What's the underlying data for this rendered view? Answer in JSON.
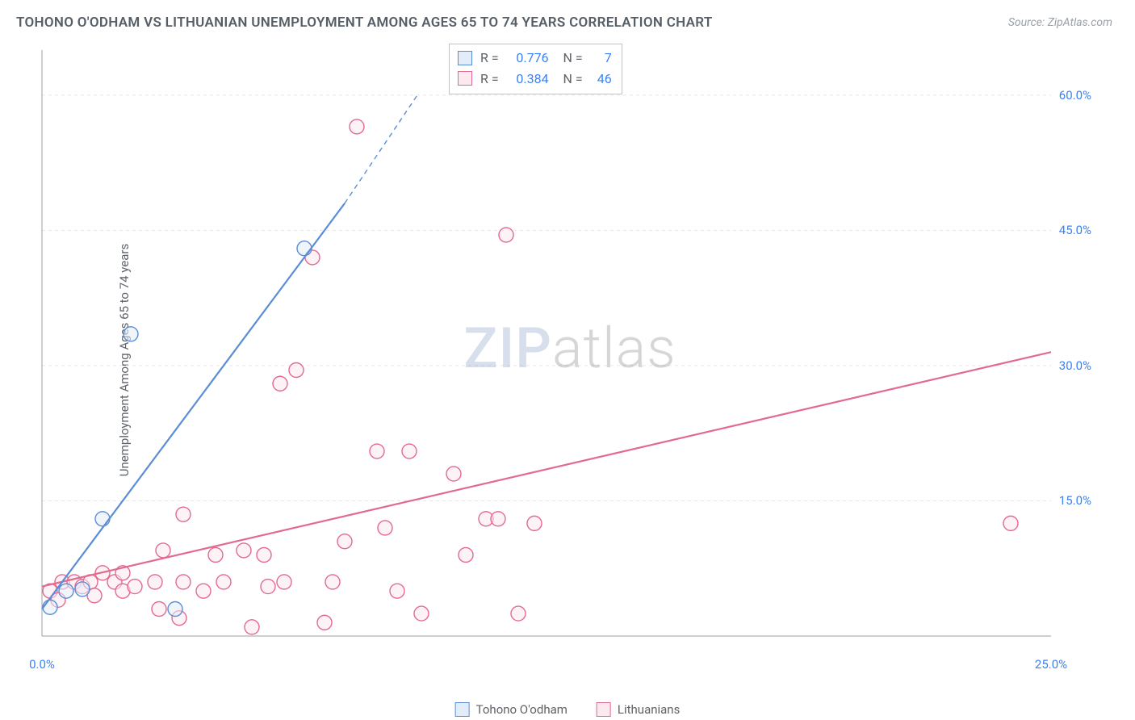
{
  "title": "TOHONO O'ODHAM VS LITHUANIAN UNEMPLOYMENT AMONG AGES 65 TO 74 YEARS CORRELATION CHART",
  "source_label": "Source: ZipAtlas.com",
  "ylabel": "Unemployment Among Ages 65 to 74 years",
  "watermark": {
    "zip": "ZIP",
    "atlas": "atlas"
  },
  "chart": {
    "type": "scatter",
    "background_color": "#ffffff",
    "grid_color": "#e6e6e6",
    "axis_color": "#9aa0a6",
    "xlim": [
      0,
      25
    ],
    "ylim": [
      0,
      65
    ],
    "xticks": [
      {
        "v": 0,
        "label": "0.0%"
      },
      {
        "v": 25,
        "label": "25.0%"
      }
    ],
    "yticks": [
      {
        "v": 15,
        "label": "15.0%"
      },
      {
        "v": 30,
        "label": "30.0%"
      },
      {
        "v": 45,
        "label": "45.0%"
      },
      {
        "v": 60,
        "label": "60.0%"
      }
    ],
    "marker_radius": 9,
    "marker_stroke_width": 1.4,
    "line_width": 2.2,
    "series": [
      {
        "key": "tohono",
        "label": "Tohono O'odham",
        "color_stroke": "#5b8dd6",
        "color_fill": "#e3edfa",
        "R": "0.776",
        "N": "7",
        "line": {
          "x1": 0.0,
          "y1": 3.0,
          "x2": 7.5,
          "y2": 48.0,
          "dash_after_x": 7.5,
          "dash_to_x": 9.3,
          "dash_to_y": 60.0
        },
        "points": [
          {
            "x": 0.2,
            "y": 3.2
          },
          {
            "x": 0.6,
            "y": 5.0
          },
          {
            "x": 1.0,
            "y": 5.2
          },
          {
            "x": 1.5,
            "y": 13.0
          },
          {
            "x": 2.2,
            "y": 33.5
          },
          {
            "x": 3.3,
            "y": 3.0
          },
          {
            "x": 6.5,
            "y": 43.0
          }
        ]
      },
      {
        "key": "lithuanian",
        "label": "Lithuanians",
        "color_stroke": "#e36a8f",
        "color_fill": "#fce8ef",
        "R": "0.384",
        "N": "46",
        "line": {
          "x1": 0.0,
          "y1": 5.5,
          "x2": 25.0,
          "y2": 31.5
        },
        "points": [
          {
            "x": 0.2,
            "y": 5.0
          },
          {
            "x": 0.4,
            "y": 4.0
          },
          {
            "x": 0.5,
            "y": 6.0
          },
          {
            "x": 0.8,
            "y": 6.0
          },
          {
            "x": 1.0,
            "y": 5.5
          },
          {
            "x": 1.2,
            "y": 6.0
          },
          {
            "x": 1.3,
            "y": 4.5
          },
          {
            "x": 1.5,
            "y": 7.0
          },
          {
            "x": 1.8,
            "y": 6.0
          },
          {
            "x": 2.0,
            "y": 7.0
          },
          {
            "x": 2.0,
            "y": 5.0
          },
          {
            "x": 2.3,
            "y": 5.5
          },
          {
            "x": 2.8,
            "y": 6.0
          },
          {
            "x": 2.9,
            "y": 3.0
          },
          {
            "x": 3.0,
            "y": 9.5
          },
          {
            "x": 3.4,
            "y": 2.0
          },
          {
            "x": 3.5,
            "y": 6.0
          },
          {
            "x": 3.5,
            "y": 13.5
          },
          {
            "x": 4.0,
            "y": 5.0
          },
          {
            "x": 4.3,
            "y": 9.0
          },
          {
            "x": 4.5,
            "y": 6.0
          },
          {
            "x": 5.0,
            "y": 9.5
          },
          {
            "x": 5.2,
            "y": 1.0
          },
          {
            "x": 5.5,
            "y": 9.0
          },
          {
            "x": 5.6,
            "y": 5.5
          },
          {
            "x": 5.9,
            "y": 28.0
          },
          {
            "x": 6.0,
            "y": 6.0
          },
          {
            "x": 6.3,
            "y": 29.5
          },
          {
            "x": 6.7,
            "y": 42.0
          },
          {
            "x": 7.0,
            "y": 1.5
          },
          {
            "x": 7.2,
            "y": 6.0
          },
          {
            "x": 7.5,
            "y": 10.5
          },
          {
            "x": 7.8,
            "y": 56.5
          },
          {
            "x": 8.3,
            "y": 20.5
          },
          {
            "x": 8.5,
            "y": 12.0
          },
          {
            "x": 8.8,
            "y": 5.0
          },
          {
            "x": 9.1,
            "y": 20.5
          },
          {
            "x": 9.4,
            "y": 2.5
          },
          {
            "x": 10.2,
            "y": 18.0
          },
          {
            "x": 10.5,
            "y": 9.0
          },
          {
            "x": 11.0,
            "y": 13.0
          },
          {
            "x": 11.3,
            "y": 13.0
          },
          {
            "x": 11.5,
            "y": 44.5
          },
          {
            "x": 11.8,
            "y": 2.5
          },
          {
            "x": 12.2,
            "y": 12.5
          },
          {
            "x": 24.0,
            "y": 12.5
          }
        ]
      }
    ],
    "bottom_legend": [
      {
        "key": "tohono",
        "label": "Tohono O'odham"
      },
      {
        "key": "lithuanian",
        "label": "Lithuanians"
      }
    ]
  }
}
